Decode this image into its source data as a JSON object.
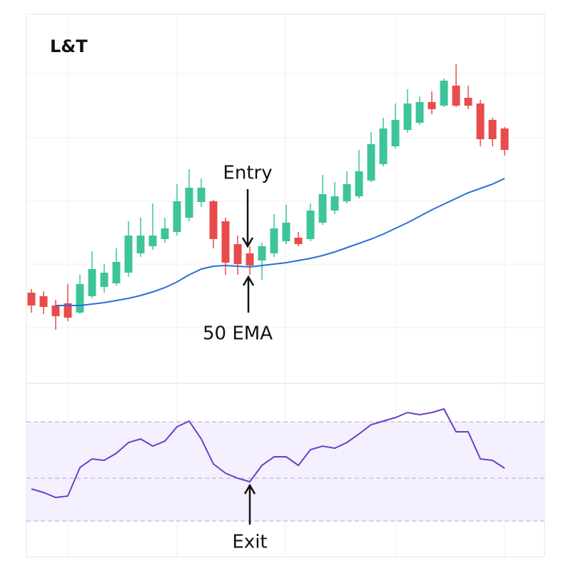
{
  "chart_data": {
    "type": "candlestick",
    "title": "L&T",
    "up_color": "#3ec49a",
    "down_color": "#e84b4b",
    "ylim": [
      0,
      520
    ],
    "open": [
      130,
      125,
      112,
      115,
      102,
      125,
      138,
      143,
      158,
      185,
      195,
      205,
      215,
      235,
      257,
      258,
      230,
      198,
      185,
      175,
      185,
      202,
      207,
      205,
      228,
      245,
      258,
      265,
      287,
      310,
      335,
      358,
      368,
      397,
      392,
      420,
      403,
      395,
      372,
      360
    ],
    "high": [
      135,
      132,
      120,
      142,
      155,
      188,
      170,
      192,
      230,
      235,
      255,
      235,
      282,
      303,
      290,
      260,
      235,
      210,
      195,
      200,
      240,
      253,
      215,
      255,
      295,
      285,
      300,
      330,
      355,
      375,
      395,
      415,
      405,
      412,
      430,
      450,
      420,
      400,
      375,
      362
    ],
    "low": [
      102,
      100,
      78,
      90,
      100,
      122,
      130,
      140,
      152,
      180,
      190,
      200,
      210,
      230,
      250,
      192,
      155,
      155,
      155,
      148,
      180,
      198,
      195,
      202,
      225,
      240,
      255,
      262,
      285,
      307,
      332,
      354,
      365,
      380,
      390,
      390,
      387,
      335,
      335,
      322
    ],
    "close": [
      112,
      110,
      97,
      95,
      142,
      163,
      158,
      173,
      210,
      210,
      210,
      220,
      258,
      277,
      277,
      205,
      172,
      170,
      168,
      195,
      220,
      228,
      198,
      245,
      268,
      265,
      282,
      300,
      338,
      360,
      372,
      395,
      397,
      387,
      427,
      392,
      392,
      345,
      345,
      330
    ],
    "ema": {
      "name": "50 EMA",
      "color": "#2a6fd8",
      "values": [
        null,
        null,
        112,
        112,
        112,
        114,
        116,
        119,
        122,
        126,
        131,
        137,
        145,
        155,
        163,
        167,
        168,
        167,
        166,
        168,
        170,
        172,
        175,
        178,
        182,
        187,
        193,
        199,
        205,
        212,
        220,
        228,
        237,
        246,
        254,
        262,
        270,
        276,
        282,
        290
      ]
    },
    "rsi": {
      "color": "#6a3fc9",
      "ylim": [
        0,
        243
      ],
      "levels": [
        50,
        110,
        189
      ],
      "values": [
        95,
        90,
        83,
        85,
        125,
        137,
        135,
        145,
        160,
        165,
        155,
        162,
        182,
        190,
        165,
        130,
        117,
        110,
        105,
        128,
        140,
        140,
        128,
        150,
        155,
        152,
        160,
        172,
        185,
        190,
        195,
        202,
        199,
        202,
        207,
        175,
        175,
        137,
        135,
        124
      ]
    },
    "annotations": [
      {
        "text": "Entry",
        "index": 18
      },
      {
        "text": "Exit",
        "index": 18
      }
    ]
  }
}
